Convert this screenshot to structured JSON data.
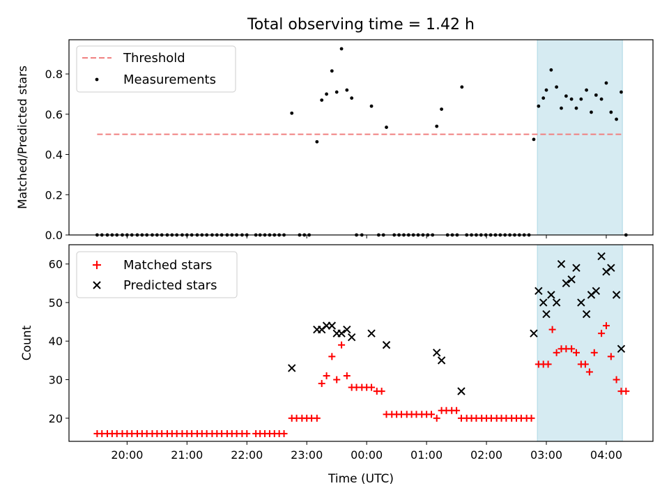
{
  "figure": {
    "title": "Total observing time = 1.42 h",
    "xlabel": "Time (UTC)",
    "xticks": [
      {
        "t": 20.0,
        "label": "20:00"
      },
      {
        "t": 21.0,
        "label": "21:00"
      },
      {
        "t": 22.0,
        "label": "22:00"
      },
      {
        "t": 23.0,
        "label": "23:00"
      },
      {
        "t": 24.0,
        "label": "00:00"
      },
      {
        "t": 25.0,
        "label": "01:00"
      },
      {
        "t": 26.0,
        "label": "02:00"
      },
      {
        "t": 27.0,
        "label": "03:00"
      },
      {
        "t": 28.0,
        "label": "04:00"
      }
    ],
    "xlim_hours": [
      19.03,
      28.78
    ],
    "highlight_span_hours": [
      26.85,
      28.27
    ],
    "colors": {
      "threshold": "#f08080",
      "measurement": "#000000",
      "matched": "#ff0000",
      "predicted": "#000000",
      "span": "#add8e6"
    }
  },
  "chart_data": [
    {
      "type": "scatter",
      "ylabel": "Matched/Predicted stars",
      "ylim": [
        0,
        0.97
      ],
      "yticks": [
        {
          "v": 0.0,
          "label": "0.0"
        },
        {
          "v": 0.2,
          "label": "0.2"
        },
        {
          "v": 0.4,
          "label": "0.4"
        },
        {
          "v": 0.6,
          "label": "0.6"
        },
        {
          "v": 0.8,
          "label": "0.8"
        }
      ],
      "legend_position": "upper-left",
      "threshold": {
        "name": "Threshold",
        "value": 0.5,
        "x_range": [
          19.5,
          28.27
        ]
      },
      "series": [
        {
          "name": "Measurements",
          "points": [
            [
              19.5,
              0
            ],
            [
              19.58,
              0
            ],
            [
              19.67,
              0
            ],
            [
              19.75,
              0
            ],
            [
              19.83,
              0
            ],
            [
              19.92,
              0
            ],
            [
              20.0,
              0
            ],
            [
              20.08,
              0
            ],
            [
              20.17,
              0
            ],
            [
              20.25,
              0
            ],
            [
              20.33,
              0
            ],
            [
              20.42,
              0
            ],
            [
              20.5,
              0
            ],
            [
              20.58,
              0
            ],
            [
              20.67,
              0
            ],
            [
              20.75,
              0
            ],
            [
              20.83,
              0
            ],
            [
              20.92,
              0
            ],
            [
              21.0,
              0
            ],
            [
              21.08,
              0
            ],
            [
              21.17,
              0
            ],
            [
              21.25,
              0
            ],
            [
              21.33,
              0
            ],
            [
              21.42,
              0
            ],
            [
              21.5,
              0
            ],
            [
              21.58,
              0
            ],
            [
              21.67,
              0
            ],
            [
              21.75,
              0
            ],
            [
              21.83,
              0
            ],
            [
              21.92,
              0
            ],
            [
              22.0,
              0
            ],
            [
              22.15,
              0
            ],
            [
              22.22,
              0
            ],
            [
              22.3,
              0
            ],
            [
              22.38,
              0
            ],
            [
              22.46,
              0
            ],
            [
              22.54,
              0
            ],
            [
              22.62,
              0
            ],
            [
              22.75,
              0.605
            ],
            [
              22.88,
              0
            ],
            [
              22.96,
              0
            ],
            [
              23.04,
              0
            ],
            [
              23.17,
              0.463
            ],
            [
              23.25,
              0.67
            ],
            [
              23.33,
              0.7
            ],
            [
              23.42,
              0.815
            ],
            [
              23.5,
              0.71
            ],
            [
              23.58,
              0.925
            ],
            [
              23.67,
              0.72
            ],
            [
              23.75,
              0.68
            ],
            [
              23.83,
              0
            ],
            [
              23.92,
              0
            ],
            [
              24.08,
              0.64
            ],
            [
              24.2,
              0
            ],
            [
              24.28,
              0
            ],
            [
              24.33,
              0.535
            ],
            [
              24.46,
              0
            ],
            [
              24.54,
              0
            ],
            [
              24.62,
              0
            ],
            [
              24.7,
              0
            ],
            [
              24.78,
              0
            ],
            [
              24.86,
              0
            ],
            [
              24.94,
              0
            ],
            [
              25.02,
              0
            ],
            [
              25.1,
              0
            ],
            [
              25.17,
              0.54
            ],
            [
              25.25,
              0.625
            ],
            [
              25.35,
              0
            ],
            [
              25.43,
              0
            ],
            [
              25.51,
              0
            ],
            [
              25.59,
              0.735
            ],
            [
              25.67,
              0
            ],
            [
              25.75,
              0
            ],
            [
              25.83,
              0
            ],
            [
              25.91,
              0
            ],
            [
              25.99,
              0
            ],
            [
              26.07,
              0
            ],
            [
              26.15,
              0
            ],
            [
              26.23,
              0
            ],
            [
              26.31,
              0
            ],
            [
              26.39,
              0
            ],
            [
              26.47,
              0
            ],
            [
              26.55,
              0
            ],
            [
              26.63,
              0
            ],
            [
              26.71,
              0
            ],
            [
              26.79,
              0.475
            ],
            [
              26.87,
              0.64
            ],
            [
              26.95,
              0.68
            ],
            [
              27.0,
              0.72
            ],
            [
              27.08,
              0.82
            ],
            [
              27.17,
              0.735
            ],
            [
              27.25,
              0.63
            ],
            [
              27.33,
              0.69
            ],
            [
              27.42,
              0.675
            ],
            [
              27.5,
              0.63
            ],
            [
              27.58,
              0.675
            ],
            [
              27.67,
              0.72
            ],
            [
              27.75,
              0.61
            ],
            [
              27.83,
              0.695
            ],
            [
              27.92,
              0.675
            ],
            [
              28.0,
              0.755
            ],
            [
              28.08,
              0.61
            ],
            [
              28.17,
              0.575
            ],
            [
              28.25,
              0.71
            ],
            [
              28.33,
              0
            ]
          ]
        }
      ]
    },
    {
      "type": "scatter",
      "ylabel": "Count",
      "ylim": [
        14,
        65
      ],
      "yticks": [
        {
          "v": 20,
          "label": "20"
        },
        {
          "v": 30,
          "label": "30"
        },
        {
          "v": 40,
          "label": "40"
        },
        {
          "v": 50,
          "label": "50"
        },
        {
          "v": 60,
          "label": "60"
        }
      ],
      "legend_position": "upper-left",
      "series": [
        {
          "name": "Matched stars",
          "marker": "plus",
          "points": [
            [
              19.5,
              16
            ],
            [
              19.58,
              16
            ],
            [
              19.67,
              16
            ],
            [
              19.75,
              16
            ],
            [
              19.83,
              16
            ],
            [
              19.92,
              16
            ],
            [
              20.0,
              16
            ],
            [
              20.08,
              16
            ],
            [
              20.17,
              16
            ],
            [
              20.25,
              16
            ],
            [
              20.33,
              16
            ],
            [
              20.42,
              16
            ],
            [
              20.5,
              16
            ],
            [
              20.58,
              16
            ],
            [
              20.67,
              16
            ],
            [
              20.75,
              16
            ],
            [
              20.83,
              16
            ],
            [
              20.92,
              16
            ],
            [
              21.0,
              16
            ],
            [
              21.08,
              16
            ],
            [
              21.17,
              16
            ],
            [
              21.25,
              16
            ],
            [
              21.33,
              16
            ],
            [
              21.42,
              16
            ],
            [
              21.5,
              16
            ],
            [
              21.58,
              16
            ],
            [
              21.67,
              16
            ],
            [
              21.75,
              16
            ],
            [
              21.83,
              16
            ],
            [
              21.92,
              16
            ],
            [
              22.0,
              16
            ],
            [
              22.15,
              16
            ],
            [
              22.22,
              16
            ],
            [
              22.3,
              16
            ],
            [
              22.38,
              16
            ],
            [
              22.46,
              16
            ],
            [
              22.54,
              16
            ],
            [
              22.62,
              16
            ],
            [
              22.75,
              20
            ],
            [
              22.83,
              20
            ],
            [
              22.92,
              20
            ],
            [
              23.0,
              20
            ],
            [
              23.08,
              20
            ],
            [
              23.17,
              20
            ],
            [
              23.25,
              29
            ],
            [
              23.33,
              31
            ],
            [
              23.42,
              36
            ],
            [
              23.5,
              30
            ],
            [
              23.58,
              39
            ],
            [
              23.67,
              31
            ],
            [
              23.75,
              28
            ],
            [
              23.83,
              28
            ],
            [
              23.92,
              28
            ],
            [
              24.0,
              28
            ],
            [
              24.08,
              28
            ],
            [
              24.17,
              27
            ],
            [
              24.25,
              27
            ],
            [
              24.33,
              21
            ],
            [
              24.42,
              21
            ],
            [
              24.5,
              21
            ],
            [
              24.58,
              21
            ],
            [
              24.67,
              21
            ],
            [
              24.75,
              21
            ],
            [
              24.83,
              21
            ],
            [
              24.92,
              21
            ],
            [
              25.0,
              21
            ],
            [
              25.08,
              21
            ],
            [
              25.17,
              20
            ],
            [
              25.25,
              22
            ],
            [
              25.33,
              22
            ],
            [
              25.42,
              22
            ],
            [
              25.5,
              22
            ],
            [
              25.58,
              20
            ],
            [
              25.67,
              20
            ],
            [
              25.75,
              20
            ],
            [
              25.83,
              20
            ],
            [
              25.92,
              20
            ],
            [
              26.0,
              20
            ],
            [
              26.08,
              20
            ],
            [
              26.17,
              20
            ],
            [
              26.25,
              20
            ],
            [
              26.33,
              20
            ],
            [
              26.42,
              20
            ],
            [
              26.5,
              20
            ],
            [
              26.58,
              20
            ],
            [
              26.67,
              20
            ],
            [
              26.75,
              20
            ],
            [
              26.87,
              34
            ],
            [
              26.95,
              34
            ],
            [
              27.03,
              34
            ],
            [
              27.1,
              43
            ],
            [
              27.17,
              37
            ],
            [
              27.25,
              38
            ],
            [
              27.33,
              38
            ],
            [
              27.42,
              38
            ],
            [
              27.5,
              37
            ],
            [
              27.58,
              34
            ],
            [
              27.65,
              34
            ],
            [
              27.72,
              32
            ],
            [
              27.8,
              37
            ],
            [
              27.92,
              42
            ],
            [
              28.0,
              44
            ],
            [
              28.08,
              36
            ],
            [
              28.17,
              30
            ],
            [
              28.25,
              27
            ],
            [
              28.33,
              27
            ]
          ]
        },
        {
          "name": "Predicted stars",
          "marker": "x",
          "points": [
            [
              22.75,
              33
            ],
            [
              23.17,
              43
            ],
            [
              23.25,
              43
            ],
            [
              23.33,
              44
            ],
            [
              23.42,
              44
            ],
            [
              23.5,
              42
            ],
            [
              23.58,
              42
            ],
            [
              23.67,
              43
            ],
            [
              23.75,
              41
            ],
            [
              24.08,
              42
            ],
            [
              24.33,
              39
            ],
            [
              25.17,
              37
            ],
            [
              25.25,
              35
            ],
            [
              25.58,
              27
            ],
            [
              26.79,
              42
            ],
            [
              26.87,
              53
            ],
            [
              26.95,
              50
            ],
            [
              27.0,
              47
            ],
            [
              27.08,
              52
            ],
            [
              27.17,
              50
            ],
            [
              27.25,
              60
            ],
            [
              27.33,
              55
            ],
            [
              27.42,
              56
            ],
            [
              27.5,
              59
            ],
            [
              27.58,
              50
            ],
            [
              27.67,
              47
            ],
            [
              27.75,
              52
            ],
            [
              27.83,
              53
            ],
            [
              27.92,
              62
            ],
            [
              28.0,
              58
            ],
            [
              28.08,
              59
            ],
            [
              28.17,
              52
            ],
            [
              28.25,
              38
            ]
          ]
        }
      ]
    }
  ]
}
